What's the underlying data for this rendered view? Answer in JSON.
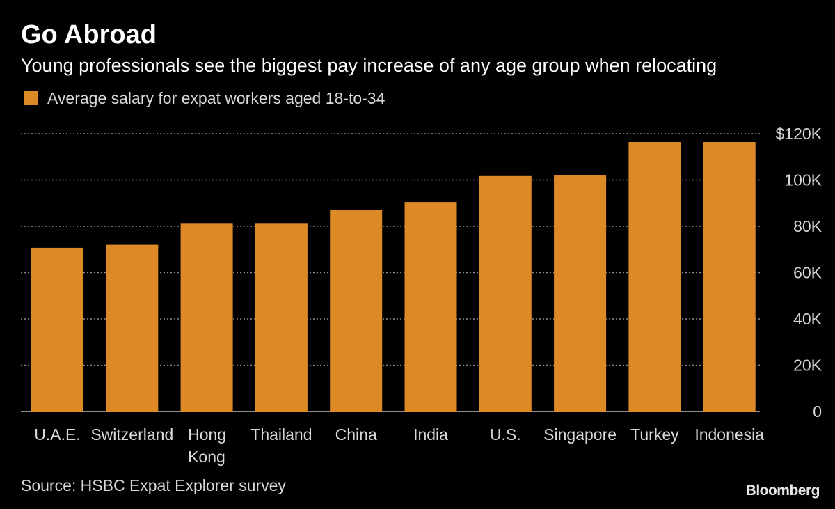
{
  "colors": {
    "background": "#000000",
    "bar": "#DD8A26",
    "grid": "#8a8a8a",
    "text": "#ffffff",
    "muted_text": "#d8d8d8"
  },
  "chart_data": {
    "type": "bar",
    "title": "Go Abroad",
    "subtitle": "Young professionals see the biggest pay increase of any age group when relocating",
    "legend": {
      "position": "top-left",
      "entries": [
        "Average salary for expat workers aged 18-to-34"
      ]
    },
    "categories": [
      "U.A.E.",
      "Switzerland",
      "Hong Kong",
      "Thailand",
      "China",
      "India",
      "U.S.",
      "Singapore",
      "Turkey",
      "Indonesia"
    ],
    "category_lines": [
      [
        "U.A.E."
      ],
      [
        "Switzerland"
      ],
      [
        "Hong",
        "Kong"
      ],
      [
        "Thailand"
      ],
      [
        "China"
      ],
      [
        "India"
      ],
      [
        "U.S."
      ],
      [
        "Singapore"
      ],
      [
        "Turkey"
      ],
      [
        "Indonesia"
      ]
    ],
    "series": [
      {
        "name": "Average salary for expat workers aged 18-to-34",
        "values": [
          70700,
          72000,
          81400,
          81400,
          87000,
          90500,
          101700,
          102000,
          116400,
          116400
        ]
      }
    ],
    "ylim": [
      0,
      120000
    ],
    "y_ticks": [
      0,
      20000,
      40000,
      60000,
      80000,
      100000,
      120000
    ],
    "y_tick_labels": [
      "0",
      "20K",
      "40K",
      "60K",
      "80K",
      "100K",
      "$120K"
    ],
    "y_axis_side": "right",
    "grid": true,
    "xlabel": "",
    "ylabel": ""
  },
  "footer": {
    "source": "Source: HSBC Expat Explorer survey",
    "brand": "Bloomberg"
  }
}
